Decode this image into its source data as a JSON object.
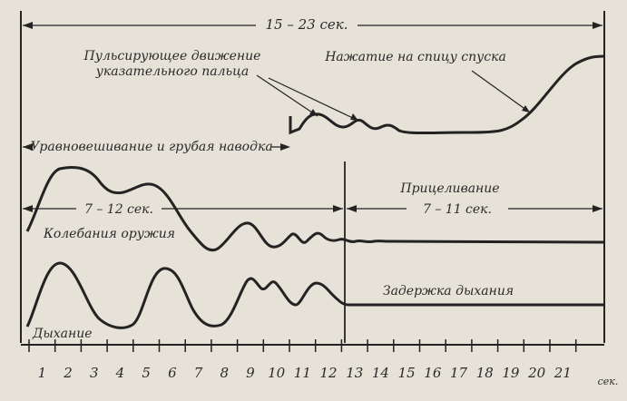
{
  "labels": {
    "total_duration": "15 – 23 сек.",
    "finger_pulse_line1": "Пульсирующее движение",
    "finger_pulse_line2": "указательного пальца",
    "trigger_press": "Нажатие на спицу спуска",
    "balancing": "Уравновешивание и грубая наводка",
    "balancing_duration": "7 – 12 сек.",
    "aiming": "Прицеливание",
    "aiming_duration": "7 – 11 сек.",
    "weapon_oscillation": "Колебания оружия",
    "breath_hold": "Задержка дыхания",
    "breathing": "Дыхание"
  },
  "axis": {
    "ticks": [
      "1",
      "2",
      "3",
      "4",
      "5",
      "6",
      "7",
      "8",
      "9",
      "10",
      "11",
      "12",
      "13",
      "14",
      "15",
      "16",
      "17",
      "18",
      "19",
      "20",
      "21"
    ],
    "unit": "сек."
  },
  "colors": {
    "ink": "#232323",
    "paper": "#e6e2d8"
  }
}
